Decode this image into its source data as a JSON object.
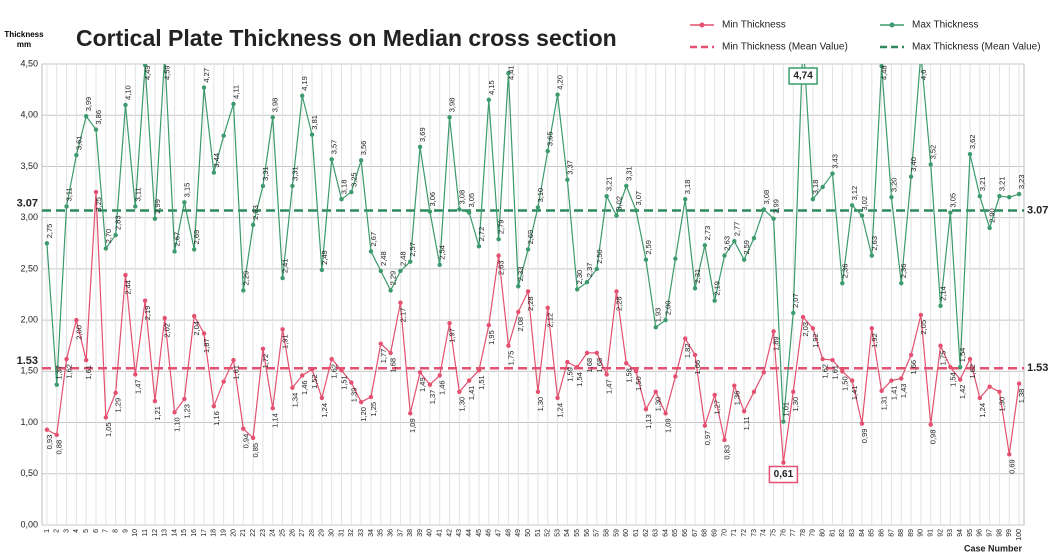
{
  "chart_data": {
    "type": "line",
    "title": "Cortical Plate Thickness on Median cross section",
    "y_axis_label": "Thickness mm",
    "x_axis_label": "Case Number",
    "categories": [
      1,
      2,
      3,
      4,
      5,
      6,
      7,
      8,
      9,
      10,
      11,
      12,
      13,
      14,
      15,
      16,
      17,
      18,
      19,
      20,
      21,
      22,
      23,
      24,
      25,
      26,
      27,
      28,
      29,
      30,
      31,
      32,
      33,
      34,
      35,
      36,
      37,
      38,
      39,
      40,
      41,
      42,
      43,
      44,
      45,
      46,
      47,
      48,
      49,
      50,
      51,
      52,
      53,
      54,
      55,
      56,
      57,
      58,
      59,
      60,
      61,
      62,
      63,
      64,
      65,
      66,
      67,
      68,
      69,
      70,
      71,
      72,
      73,
      74,
      75,
      76,
      77,
      78,
      79,
      80,
      81,
      82,
      83,
      84,
      85,
      86,
      87,
      88,
      89,
      90,
      91,
      92,
      93,
      94,
      95,
      96,
      97,
      98,
      99,
      100
    ],
    "series": [
      {
        "name": "Min Thickness",
        "color": "#e4506f",
        "values": [
          0.93,
          0.88,
          1.62,
          2.0,
          1.61,
          3.25,
          1.05,
          1.29,
          2.44,
          1.47,
          2.19,
          1.21,
          2.02,
          1.1,
          1.23,
          2.04,
          1.87,
          1.16,
          1.4,
          1.61,
          0.94,
          0.85,
          1.72,
          1.14,
          1.91,
          1.34,
          1.46,
          1.52,
          1.24,
          1.62,
          1.51,
          1.39,
          1.2,
          1.25,
          1.77,
          1.68,
          2.17,
          1.09,
          1.49,
          1.37,
          1.46,
          1.97,
          1.3,
          1.41,
          1.51,
          1.95,
          2.63,
          1.75,
          2.08,
          2.28,
          1.3,
          2.12,
          1.24,
          1.59,
          1.54,
          1.68,
          1.68,
          1.47,
          2.28,
          1.58,
          1.5,
          1.13,
          1.3,
          1.09,
          1.45,
          1.82,
          1.66,
          0.97,
          1.27,
          0.83,
          1.36,
          1.11,
          1.3,
          1.49,
          1.89,
          0.61,
          1.3,
          2.03,
          1.92,
          1.62,
          1.61,
          1.5,
          1.41,
          0.99,
          1.92,
          1.31,
          1.41,
          1.43,
          1.66,
          2.05,
          0.98,
          1.75,
          1.54,
          1.42,
          1.62,
          1.24,
          1.35,
          1.3,
          0.69,
          1.38
        ],
        "value_labels": [
          "0,93",
          "0,88",
          "1,62",
          "2,00",
          "1,61",
          "3,25",
          "1,05",
          "1,29",
          "2,44",
          "1,47",
          "2,19",
          "1,21",
          "2,02",
          "1,10",
          "1,23",
          "2,04",
          "1,87",
          "1,16",
          null,
          "1,61",
          "0,94",
          "0,85",
          "1,72",
          "1,14",
          "1,91",
          "1,34",
          "1,46",
          "1,52",
          "1,24",
          "1,62",
          "1,51",
          "1,39",
          "1,20",
          "1,25",
          "1,77",
          "1,68",
          "2,17",
          "1,09",
          "1,49",
          "1,37",
          "1,46",
          "1,97",
          "1,30",
          "1,41",
          "1,51",
          "1,95",
          "2,63",
          "1,75",
          "2,08",
          "2,28",
          "1,30",
          "2,12",
          "1,24",
          "1,59",
          "1,54",
          "1,68",
          "1,68",
          "1,47",
          "2,28",
          "1,58",
          "1,50",
          "1,13",
          "1,30",
          "1,09",
          null,
          "1,82",
          "1,66",
          "0,97",
          "1,27",
          "0,83",
          "1,36",
          "1,11",
          null,
          null,
          "1,89",
          "0,61",
          "1,30",
          "2,03",
          "1,92",
          "1,62",
          "1,61",
          "1,50",
          "1,41",
          "0,99",
          "1,92",
          "1,31",
          "1,41",
          "1,43",
          "1,66",
          "2,05",
          "0,98",
          "1,75",
          "1,54",
          "1,42",
          "1,62",
          "1,24",
          null,
          "1,30",
          "0,69",
          "1,38"
        ]
      },
      {
        "name": "Max Thickness",
        "color": "#3c9a6c",
        "values": [
          2.75,
          1.37,
          3.11,
          3.61,
          3.99,
          3.86,
          2.7,
          2.83,
          4.1,
          3.11,
          4.49,
          2.99,
          4.59,
          2.67,
          3.15,
          2.69,
          4.27,
          3.44,
          3.8,
          4.11,
          2.29,
          2.93,
          3.31,
          3.98,
          2.41,
          3.31,
          4.19,
          3.81,
          2.49,
          3.57,
          3.18,
          3.25,
          3.56,
          2.67,
          2.48,
          2.29,
          2.48,
          2.57,
          3.69,
          3.06,
          2.54,
          3.98,
          3.08,
          3.05,
          2.72,
          4.15,
          2.79,
          4.41,
          2.33,
          2.69,
          3.1,
          3.65,
          4.2,
          3.37,
          2.3,
          2.37,
          2.5,
          3.21,
          3.02,
          3.31,
          3.07,
          2.59,
          1.93,
          2.0,
          2.6,
          3.18,
          2.31,
          2.73,
          2.19,
          2.63,
          2.77,
          2.59,
          2.8,
          3.08,
          2.99,
          1.01,
          2.07,
          4.74,
          3.18,
          3.3,
          3.43,
          2.36,
          3.12,
          3.02,
          2.63,
          4.48,
          3.2,
          2.36,
          3.4,
          4.6,
          3.52,
          2.14,
          3.05,
          1.54,
          3.62,
          3.21,
          2.9,
          3.21,
          3.2,
          3.23
        ],
        "value_labels": [
          "2,75",
          "1,37",
          "3,11",
          "3,61",
          "3,99",
          "3,86",
          "2,70",
          "2,83",
          "4,10",
          "3,11",
          "4,49",
          "2,99",
          "4,59",
          "2,67",
          "3,15",
          "2,69",
          "4,27",
          "3,44",
          null,
          "4,11",
          "2,29",
          "2,93",
          "3,31",
          "3,98",
          "2,41",
          "3,31",
          "4,19",
          "3,81",
          "2,49",
          "3,57",
          "3,18",
          "3,25",
          "3,56",
          "2,67",
          "2,48",
          "2,29",
          "2,48",
          "2,57",
          "3,69",
          "3,06",
          "2,54",
          "3,98",
          "3,08",
          "3,05",
          "2,72",
          "4,15",
          "2,79",
          "4,41",
          "2,33",
          "2,69",
          "3,10",
          "3,65",
          "4,20",
          "3,37",
          "2,30",
          "2,37",
          "2,50",
          "3,21",
          "3,02",
          "3,31",
          "3,07",
          "2,59",
          "1,93",
          "2,00",
          null,
          "3,18",
          "2,31",
          "2,73",
          "2,19",
          "2,63",
          "2,77",
          "2,59",
          null,
          "3,08",
          "2,99",
          "1,01",
          "2,07",
          "4,74",
          "3,18",
          null,
          "3,43",
          "2,36",
          "3,12",
          "3,02",
          "2,63",
          "4,48",
          "3,20",
          "2,36",
          "3,40",
          "4,6",
          "3,52",
          "2,14",
          "3,05",
          "1,54",
          "3,62",
          "3,21",
          "2,90",
          "3,21",
          null,
          "3,23"
        ]
      }
    ],
    "mean_lines": [
      {
        "name": "Min Thickness (Mean Value)",
        "value": 1.53,
        "color": "#e4506f"
      },
      {
        "name": "Max Thickness (Mean Value)",
        "value": 3.07,
        "color": "#2e8a5c"
      }
    ],
    "ylim": [
      0,
      4.5
    ],
    "yticks": [
      {
        "value": 0,
        "label": "0,00"
      },
      {
        "value": 0.5,
        "label": "0,50"
      },
      {
        "value": 1,
        "label": "1,00"
      },
      {
        "value": 1.5,
        "label": "1,50"
      },
      {
        "value": 2,
        "label": "2,00"
      },
      {
        "value": 2.5,
        "label": "2,50"
      },
      {
        "value": 3,
        "label": "3,00"
      },
      {
        "value": 3.5,
        "label": "3,50"
      },
      {
        "value": 4,
        "label": "4,00"
      },
      {
        "value": 4.5,
        "label": "4,50"
      }
    ],
    "grid": true
  }
}
